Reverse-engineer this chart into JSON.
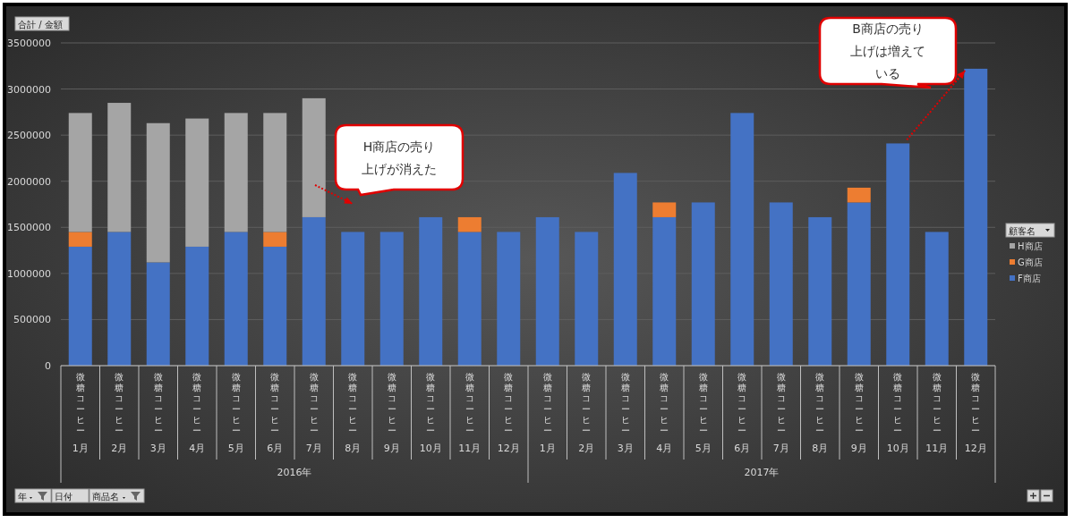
{
  "chart_data": {
    "type": "bar",
    "stacked": true,
    "categories": [
      "1月",
      "2月",
      "3月",
      "4月",
      "5月",
      "6月",
      "7月",
      "8月",
      "9月",
      "10月",
      "11月",
      "12月",
      "1月",
      "2月",
      "3月",
      "4月",
      "5月",
      "6月",
      "7月",
      "8月",
      "9月",
      "10月",
      "11月",
      "12月"
    ],
    "series": [
      {
        "name": "F商店",
        "color": "#4472c4",
        "values": [
          1290000,
          1450000,
          1120000,
          1290000,
          1450000,
          1290000,
          1610000,
          1450000,
          1450000,
          1610000,
          1450000,
          1450000,
          1610000,
          1450000,
          2090000,
          1610000,
          1770000,
          2740000,
          1770000,
          1610000,
          1770000,
          2410000,
          1450000,
          3220000
        ]
      },
      {
        "name": "G商店",
        "color": "#ed7d31",
        "values": [
          160000,
          null,
          null,
          null,
          null,
          160000,
          null,
          null,
          null,
          null,
          160000,
          null,
          null,
          null,
          null,
          160000,
          null,
          null,
          null,
          null,
          160000,
          null,
          null,
          null
        ]
      },
      {
        "name": "H商店",
        "color": "#a5a5a5",
        "values": [
          1290000,
          1400000,
          1510000,
          1390000,
          1290000,
          1290000,
          1290000,
          null,
          null,
          null,
          null,
          null,
          null,
          null,
          null,
          null,
          null,
          null,
          null,
          null,
          null,
          null,
          null,
          null
        ]
      }
    ],
    "ylim": [
      0,
      3500000
    ],
    "yticks": [
      0,
      500000,
      1000000,
      1500000,
      2000000,
      2500000,
      3000000,
      3500000
    ],
    "grid": "y",
    "legend": "right",
    "legend_title": "顧客名",
    "annotations": [
      "H商店の売り上げが消えた",
      "B商店の売り上げは増えている",
      "合計 / 金額",
      "年",
      "日付",
      "商品名",
      "2016年",
      "2017年",
      "微糖コーヒー"
    ]
  }
}
